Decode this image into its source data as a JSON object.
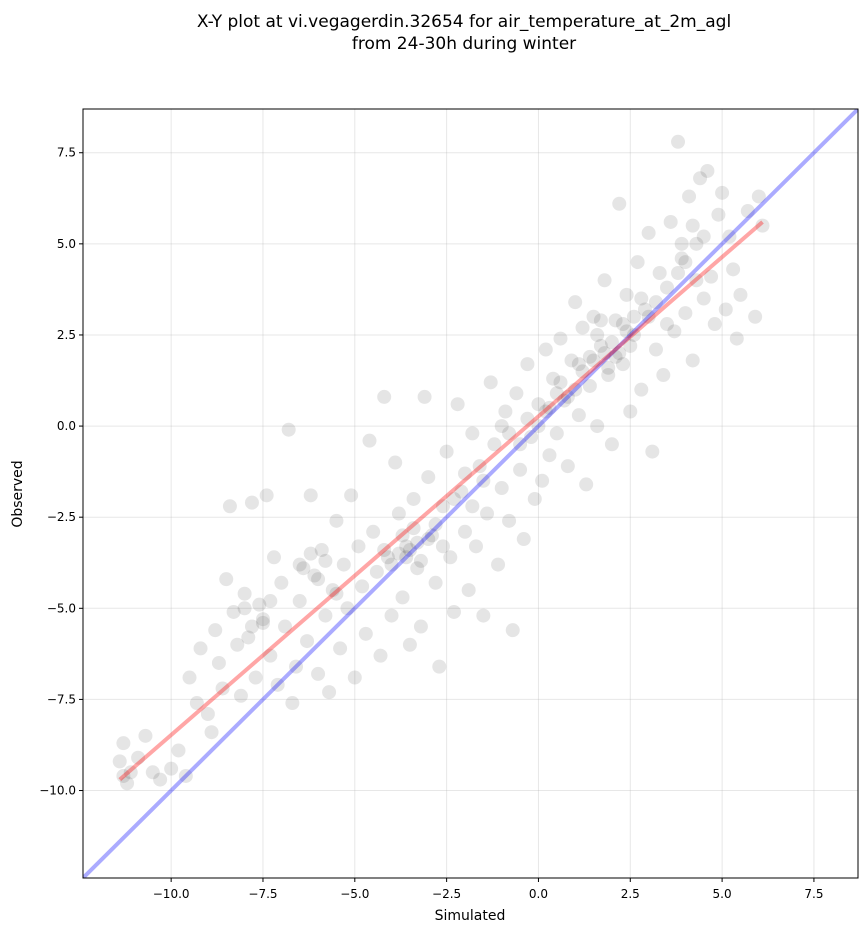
{
  "chart_data": {
    "type": "scatter",
    "title_lines": [
      "X-Y plot at vi.vegagerdin.32654 for air_temperature_at_2m_agl",
      "from 24-30h during winter"
    ],
    "xlabel": "Simulated",
    "ylabel": "Observed",
    "xlim": [
      -12.4,
      8.7
    ],
    "ylim": [
      -12.4,
      8.7
    ],
    "x_ticks": [
      -10.0,
      -7.5,
      -5.0,
      -2.5,
      0.0,
      2.5,
      5.0,
      7.5
    ],
    "y_ticks": [
      -10.0,
      -7.5,
      -5.0,
      -2.5,
      0.0,
      2.5,
      5.0,
      7.5
    ],
    "x_tick_labels": [
      "−10.0",
      "−7.5",
      "−5.0",
      "−2.5",
      "0.0",
      "2.5",
      "5.0",
      "7.5"
    ],
    "y_tick_labels": [
      "−10.0",
      "−7.5",
      "−5.0",
      "−2.5",
      "0.0",
      "2.5",
      "5.0",
      "7.5"
    ],
    "grid": true,
    "point_color": "#000000",
    "point_opacity": 0.1,
    "regression_line": {
      "color": "#ff0000",
      "opacity": 0.35,
      "x": [
        -11.4,
        6.1
      ],
      "y": [
        -9.7,
        5.6
      ]
    },
    "identity_line": {
      "color": "#0000ff",
      "opacity": 0.33,
      "x": [
        -12.4,
        8.7
      ],
      "y": [
        -12.4,
        8.7
      ]
    },
    "points": [
      [
        -11.4,
        -9.2
      ],
      [
        -11.3,
        -9.6
      ],
      [
        -11.2,
        -9.8
      ],
      [
        -11.1,
        -9.5
      ],
      [
        -11.3,
        -8.7
      ],
      [
        -10.9,
        -9.1
      ],
      [
        -10.7,
        -8.5
      ],
      [
        -10.5,
        -9.5
      ],
      [
        -10.3,
        -9.7
      ],
      [
        -10.0,
        -9.4
      ],
      [
        -9.8,
        -8.9
      ],
      [
        -9.6,
        -9.6
      ],
      [
        -9.5,
        -6.9
      ],
      [
        -9.3,
        -7.6
      ],
      [
        -9.2,
        -6.1
      ],
      [
        -9.0,
        -7.9
      ],
      [
        -8.9,
        -8.4
      ],
      [
        -8.8,
        -5.6
      ],
      [
        -8.7,
        -6.5
      ],
      [
        -8.6,
        -7.2
      ],
      [
        -8.5,
        -4.2
      ],
      [
        -8.4,
        -2.2
      ],
      [
        -8.3,
        -5.1
      ],
      [
        -8.2,
        -6.0
      ],
      [
        -8.1,
        -7.4
      ],
      [
        -8.0,
        -4.6
      ],
      [
        -7.9,
        -5.8
      ],
      [
        -7.8,
        -2.1
      ],
      [
        -7.7,
        -6.9
      ],
      [
        -7.6,
        -4.9
      ],
      [
        -7.5,
        -5.4
      ],
      [
        -7.4,
        -1.9
      ],
      [
        -7.3,
        -6.3
      ],
      [
        -7.2,
        -3.6
      ],
      [
        -7.1,
        -7.1
      ],
      [
        -7.0,
        -4.3
      ],
      [
        -6.9,
        -5.5
      ],
      [
        -6.8,
        -0.1
      ],
      [
        -6.7,
        -7.6
      ],
      [
        -6.6,
        -6.6
      ],
      [
        -6.5,
        -4.8
      ],
      [
        -6.4,
        -3.9
      ],
      [
        -6.3,
        -5.9
      ],
      [
        -6.2,
        -1.9
      ],
      [
        -6.1,
        -4.1
      ],
      [
        -6.0,
        -6.8
      ],
      [
        -5.9,
        -3.4
      ],
      [
        -5.8,
        -5.2
      ],
      [
        -5.7,
        -7.3
      ],
      [
        -5.6,
        -4.5
      ],
      [
        -5.5,
        -2.6
      ],
      [
        -5.4,
        -6.1
      ],
      [
        -5.3,
        -3.8
      ],
      [
        -5.2,
        -5.0
      ],
      [
        -5.1,
        -1.9
      ],
      [
        -5.0,
        -6.9
      ],
      [
        -4.9,
        -3.3
      ],
      [
        -4.8,
        -4.4
      ],
      [
        -4.7,
        -5.7
      ],
      [
        -4.6,
        -0.4
      ],
      [
        -4.5,
        -2.9
      ],
      [
        -4.4,
        -4.0
      ],
      [
        -4.3,
        -6.3
      ],
      [
        -4.2,
        0.8
      ],
      [
        -4.1,
        -3.6
      ],
      [
        -4.0,
        -5.2
      ],
      [
        -3.9,
        -1.0
      ],
      [
        -3.8,
        -2.4
      ],
      [
        -3.7,
        -4.7
      ],
      [
        -3.6,
        -3.3
      ],
      [
        -3.5,
        -6.0
      ],
      [
        -3.4,
        -2.0
      ],
      [
        -3.3,
        -3.9
      ],
      [
        -3.2,
        -5.5
      ],
      [
        -3.1,
        0.8
      ],
      [
        -3.0,
        -1.4
      ],
      [
        -2.9,
        -3.0
      ],
      [
        -2.8,
        -4.3
      ],
      [
        -2.7,
        -6.6
      ],
      [
        -2.6,
        -2.2
      ],
      [
        -2.5,
        -0.7
      ],
      [
        -2.4,
        -3.6
      ],
      [
        -2.3,
        -5.1
      ],
      [
        -2.2,
        0.6
      ],
      [
        -2.1,
        -1.8
      ],
      [
        -2.0,
        -2.9
      ],
      [
        -1.9,
        -4.5
      ],
      [
        -1.8,
        -0.2
      ],
      [
        -1.7,
        -3.3
      ],
      [
        -1.6,
        -1.1
      ],
      [
        -1.5,
        -5.2
      ],
      [
        -1.4,
        -2.4
      ],
      [
        -1.3,
        1.2
      ],
      [
        -1.2,
        -0.5
      ],
      [
        -1.1,
        -3.8
      ],
      [
        -1.0,
        -1.7
      ],
      [
        -0.9,
        0.4
      ],
      [
        -0.8,
        -2.6
      ],
      [
        -0.7,
        -5.6
      ],
      [
        -0.6,
        0.9
      ],
      [
        -0.5,
        -1.2
      ],
      [
        -0.4,
        -3.1
      ],
      [
        -0.3,
        1.7
      ],
      [
        -0.2,
        -0.3
      ],
      [
        -0.1,
        -2.0
      ],
      [
        0.0,
        0.6
      ],
      [
        0.1,
        -1.5
      ],
      [
        0.2,
        2.1
      ],
      [
        0.3,
        -0.8
      ],
      [
        0.4,
        1.3
      ],
      [
        0.5,
        -0.2
      ],
      [
        0.6,
        2.4
      ],
      [
        0.7,
        0.7
      ],
      [
        0.8,
        -1.1
      ],
      [
        0.9,
        1.8
      ],
      [
        1.0,
        3.4
      ],
      [
        1.1,
        0.3
      ],
      [
        1.2,
        2.7
      ],
      [
        1.3,
        -1.6
      ],
      [
        1.4,
        1.1
      ],
      [
        1.5,
        3.0
      ],
      [
        1.6,
        0.0
      ],
      [
        1.7,
        2.2
      ],
      [
        1.8,
        4.0
      ],
      [
        1.9,
        1.4
      ],
      [
        2.0,
        -0.5
      ],
      [
        2.1,
        2.9
      ],
      [
        2.2,
        6.1
      ],
      [
        2.3,
        1.7
      ],
      [
        2.4,
        3.6
      ],
      [
        2.5,
        0.4
      ],
      [
        2.6,
        2.5
      ],
      [
        2.7,
        4.5
      ],
      [
        2.8,
        1.0
      ],
      [
        2.9,
        3.2
      ],
      [
        3.0,
        5.3
      ],
      [
        3.1,
        -0.7
      ],
      [
        3.2,
        2.1
      ],
      [
        3.3,
        4.2
      ],
      [
        3.4,
        1.4
      ],
      [
        3.5,
        3.8
      ],
      [
        3.6,
        5.6
      ],
      [
        3.7,
        2.6
      ],
      [
        3.8,
        7.8
      ],
      [
        3.9,
        4.6
      ],
      [
        4.0,
        3.1
      ],
      [
        4.1,
        6.3
      ],
      [
        4.2,
        1.8
      ],
      [
        4.3,
        5.0
      ],
      [
        4.4,
        6.8
      ],
      [
        4.5,
        3.5
      ],
      [
        4.6,
        7.0
      ],
      [
        4.7,
        4.1
      ],
      [
        4.8,
        2.8
      ],
      [
        4.9,
        5.8
      ],
      [
        5.0,
        6.4
      ],
      [
        5.1,
        3.2
      ],
      [
        5.2,
        5.2
      ],
      [
        5.3,
        4.3
      ],
      [
        5.4,
        2.4
      ],
      [
        5.5,
        3.6
      ],
      [
        5.7,
        5.9
      ],
      [
        5.9,
        3.0
      ],
      [
        6.0,
        6.3
      ],
      [
        6.1,
        5.5
      ],
      [
        1.0,
        1.0
      ],
      [
        1.2,
        1.5
      ],
      [
        1.5,
        1.8
      ],
      [
        1.8,
        2.0
      ],
      [
        2.0,
        2.3
      ],
      [
        2.2,
        2.0
      ],
      [
        1.6,
        2.5
      ],
      [
        1.9,
        1.6
      ],
      [
        2.3,
        2.8
      ],
      [
        2.5,
        2.2
      ],
      [
        1.4,
        1.9
      ],
      [
        1.7,
        2.9
      ],
      [
        2.1,
        1.9
      ],
      [
        2.4,
        2.6
      ],
      [
        2.6,
        3.0
      ],
      [
        0.6,
        1.2
      ],
      [
        0.8,
        0.8
      ],
      [
        0.3,
        0.5
      ],
      [
        0.5,
        0.9
      ],
      [
        1.1,
        1.7
      ],
      [
        -3.5,
        -3.4
      ],
      [
        -3.6,
        -3.6
      ],
      [
        -3.3,
        -3.2
      ],
      [
        -3.7,
        -3.0
      ],
      [
        -3.2,
        -3.7
      ],
      [
        -3.4,
        -2.8
      ],
      [
        -3.8,
        -3.5
      ],
      [
        -3.0,
        -3.1
      ],
      [
        -2.8,
        -2.7
      ],
      [
        -2.6,
        -3.3
      ],
      [
        -4.0,
        -3.8
      ],
      [
        -4.2,
        -3.4
      ],
      [
        -5.5,
        -4.6
      ],
      [
        -5.8,
        -3.7
      ],
      [
        -6.2,
        -3.5
      ],
      [
        -6.5,
        -3.8
      ],
      [
        -6.0,
        -4.2
      ],
      [
        -7.5,
        -5.3
      ],
      [
        -7.3,
        -4.8
      ],
      [
        -7.8,
        -5.5
      ],
      [
        -8.0,
        -5.0
      ],
      [
        -0.5,
        -0.5
      ],
      [
        -0.8,
        -0.2
      ],
      [
        -0.3,
        0.2
      ],
      [
        -1.0,
        0.0
      ],
      [
        0.0,
        0.0
      ],
      [
        0.2,
        0.4
      ],
      [
        -1.5,
        -1.5
      ],
      [
        -2.0,
        -1.3
      ],
      [
        -1.8,
        -2.2
      ],
      [
        -2.3,
        -2.0
      ],
      [
        3.0,
        3.0
      ],
      [
        3.2,
        3.4
      ],
      [
        3.5,
        2.8
      ],
      [
        2.8,
        3.5
      ],
      [
        4.0,
        4.5
      ],
      [
        4.3,
        4.0
      ],
      [
        3.8,
        4.2
      ],
      [
        4.5,
        5.2
      ],
      [
        4.2,
        5.5
      ],
      [
        3.9,
        5.0
      ]
    ]
  }
}
